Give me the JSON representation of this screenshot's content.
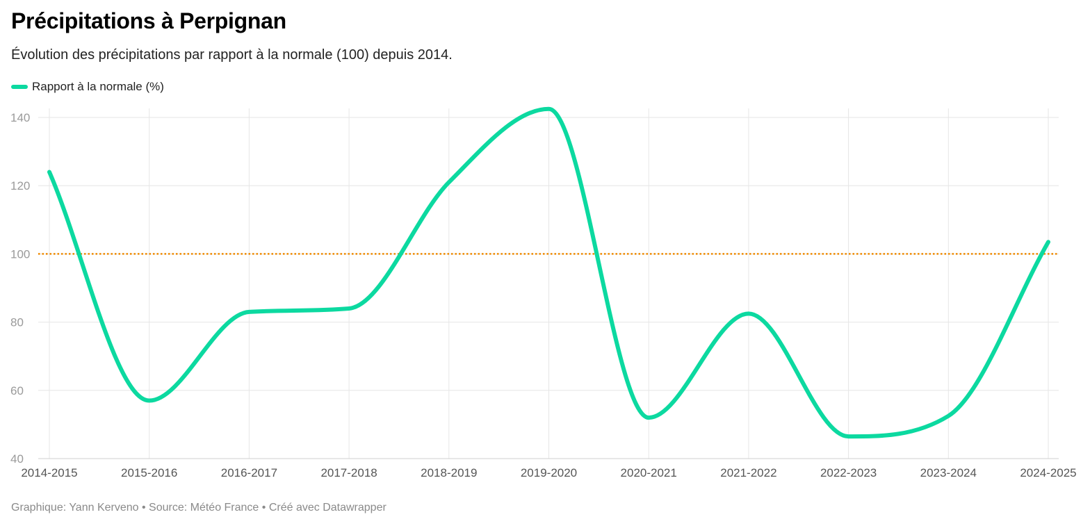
{
  "header": {
    "title": "Précipitations à Perpignan",
    "subtitle": "Évolution des précipitations par rapport à la normale (100) depuis 2014."
  },
  "legend": {
    "label": "Rapport à la normale (%)"
  },
  "footer": {
    "credit": "Graphique: Yann Kerveno • Source: Météo France • Créé avec Datawrapper"
  },
  "colors": {
    "series": "#0cd9a0",
    "reference": "#f08a00",
    "grid": "#e6e6e6"
  },
  "chart_data": {
    "type": "line",
    "title": "Précipitations à Perpignan",
    "subtitle": "Évolution des précipitations par rapport à la normale (100) depuis 2014.",
    "xlabel": "",
    "ylabel": "",
    "categories": [
      "2014-2015",
      "2015-2016",
      "2016-2017",
      "2017-2018",
      "2018-2019",
      "2019-2020",
      "2020-2021",
      "2021-2022",
      "2022-2023",
      "2023-2024",
      "2024-2025"
    ],
    "series": [
      {
        "name": "Rapport à la normale (%)",
        "values": [
          124,
          57,
          83,
          84,
          121,
          142.5,
          52,
          82.5,
          46.5,
          52.5,
          103.5
        ]
      }
    ],
    "reference_line": 100,
    "ylim": [
      40,
      142.5
    ],
    "yticks": [
      40,
      60,
      80,
      100,
      120,
      140
    ],
    "grid": true,
    "legend_position": "top-left"
  }
}
